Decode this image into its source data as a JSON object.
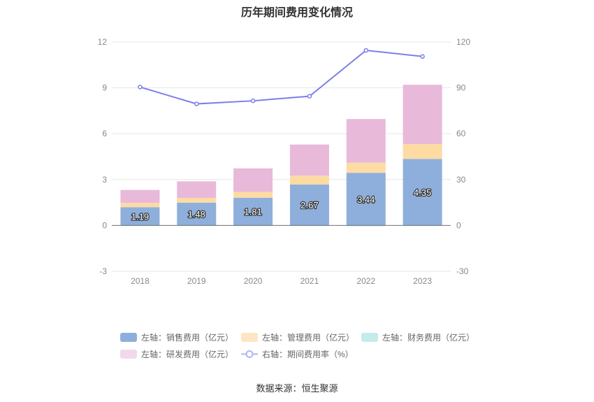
{
  "chart_data": {
    "type": "bar",
    "title": "历年期间费用变化情况",
    "categories": [
      "2018",
      "2019",
      "2020",
      "2021",
      "2022",
      "2023"
    ],
    "stacked": true,
    "left_axis": {
      "min": -3,
      "max": 12,
      "ticks": [
        -3,
        0,
        3,
        6,
        9,
        12
      ]
    },
    "right_axis": {
      "min": -30,
      "max": 120,
      "ticks": [
        -30,
        0,
        30,
        60,
        90,
        120
      ]
    },
    "series": [
      {
        "name": "左轴：销售费用（亿元）",
        "type": "bar",
        "axis": "left",
        "color": "#8eafdb",
        "values": [
          1.19,
          1.48,
          1.81,
          2.67,
          3.44,
          4.35
        ],
        "show_labels": true
      },
      {
        "name": "左轴：管理费用（亿元）",
        "type": "bar",
        "axis": "left",
        "color": "#fddba3",
        "values": [
          0.28,
          0.32,
          0.38,
          0.58,
          0.66,
          0.97
        ],
        "show_labels": false
      },
      {
        "name": "左轴：财务费用（亿元）",
        "type": "bar",
        "axis": "left",
        "color": "#b7e6e6",
        "values": [
          -0.02,
          -0.02,
          -0.03,
          -0.03,
          -0.05,
          -0.04
        ],
        "show_labels": false
      },
      {
        "name": "左轴：研发费用（亿元）",
        "type": "bar",
        "axis": "left",
        "color": "#e8b9d9",
        "values": [
          0.85,
          1.08,
          1.54,
          2.04,
          2.86,
          3.88
        ],
        "show_labels": false
      },
      {
        "name": "右轴：期间费用率（%）",
        "type": "line",
        "axis": "right",
        "color": "#7b7fe6",
        "values": [
          90.5,
          79.5,
          81.5,
          84.5,
          114.5,
          110.5
        ]
      }
    ],
    "legend": {
      "position": "bottom"
    }
  },
  "source": "数据来源：恒生聚源"
}
